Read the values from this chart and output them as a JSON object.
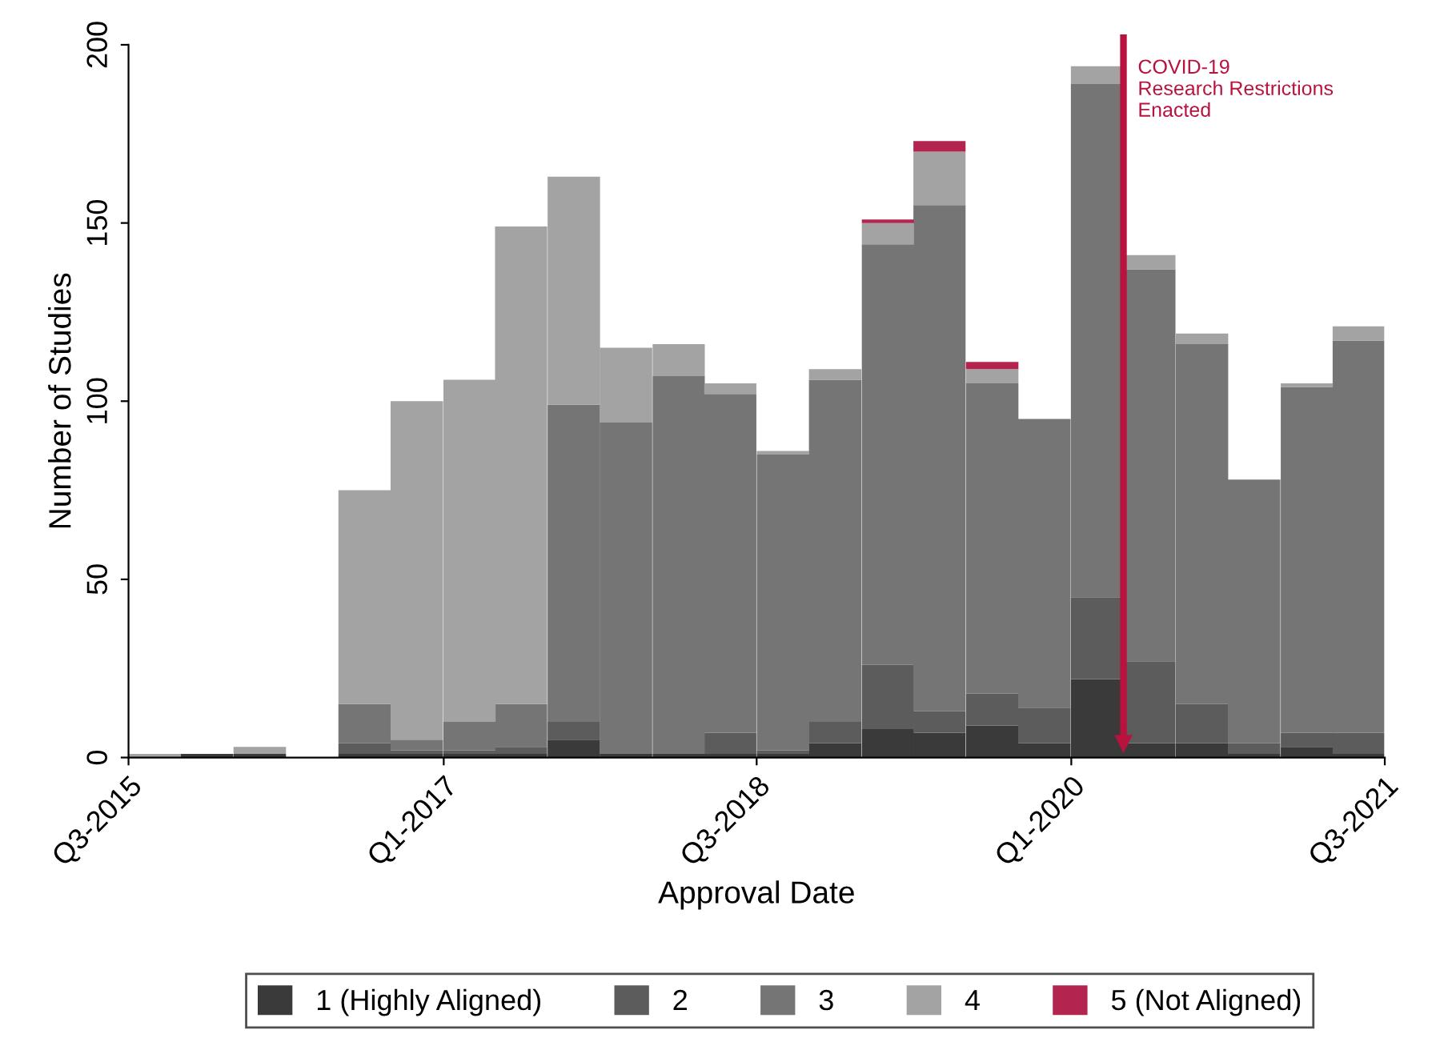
{
  "chart_data": {
    "type": "bar",
    "stacked": true,
    "xlabel": "Approval Date",
    "ylabel": "Number of Studies",
    "x": [
      "2015-08-16",
      "2015-11-15",
      "2016-02-15",
      "2016-05-16",
      "2016-08-16",
      "2016-11-15",
      "2017-02-15",
      "2017-05-16",
      "2017-08-16",
      "2017-11-15",
      "2018-02-15",
      "2018-05-16",
      "2018-08-16",
      "2018-11-15",
      "2019-02-15",
      "2019-05-16",
      "2019-08-16",
      "2019-11-15",
      "2020-02-15",
      "2020-05-16",
      "2020-08-16",
      "2020-11-15",
      "2021-02-15",
      "2021-05-16"
    ],
    "series": [
      {
        "name": "1 (Highly Aligned)",
        "color": "#3a3a3a",
        "values": [
          0,
          1,
          1,
          0,
          1,
          1,
          1,
          1,
          5,
          1,
          1,
          1,
          1,
          4,
          8,
          7,
          9,
          4,
          22,
          4,
          4,
          1,
          3,
          1
        ]
      },
      {
        "name": "2",
        "color": "#5c5c5c",
        "values": [
          0,
          0,
          0,
          0,
          3,
          1,
          1,
          2,
          5,
          0,
          0,
          6,
          1,
          6,
          18,
          6,
          9,
          10,
          23,
          23,
          11,
          3,
          4,
          6
        ]
      },
      {
        "name": "3",
        "color": "#757575",
        "values": [
          0,
          0,
          0,
          0,
          11,
          3,
          8,
          12,
          89,
          93,
          106,
          95,
          83,
          96,
          118,
          142,
          87,
          81,
          144,
          110,
          101,
          74,
          97,
          110
        ]
      },
      {
        "name": "4",
        "color": "#a3a3a3",
        "values": [
          1,
          0,
          2,
          0,
          60,
          95,
          96,
          134,
          64,
          21,
          9,
          3,
          1,
          3,
          6,
          15,
          4,
          0,
          5,
          4,
          3,
          0,
          1,
          4
        ]
      },
      {
        "name": "5 (Not Aligned)",
        "color": "#b3244f",
        "values": [
          0,
          0,
          0,
          0,
          0,
          0,
          0,
          0,
          0,
          0,
          0,
          0,
          0,
          0,
          1,
          3,
          2,
          0,
          0,
          0,
          0,
          0,
          0,
          0
        ]
      }
    ],
    "xlim": [
      "2015-07",
      "2021-07"
    ],
    "xticks": [
      {
        "value": "2015-07",
        "label": "Q3-2015"
      },
      {
        "value": "2017-01",
        "label": "Q1-2017"
      },
      {
        "value": "2018-07",
        "label": "Q3-2018"
      },
      {
        "value": "2020-01",
        "label": "Q1-2020"
      },
      {
        "value": "2021-07",
        "label": "Q3-2021"
      }
    ],
    "ylim": [
      0,
      200
    ],
    "yticks": [
      0,
      50,
      100,
      150,
      200
    ],
    "ref_lines": [
      {
        "axis": "x",
        "value": "2020-04",
        "label": "COVID-19\nResearch Restrictions\nEnacted",
        "color": "#b8123f"
      }
    ],
    "grid": false,
    "legend": "bottom"
  }
}
